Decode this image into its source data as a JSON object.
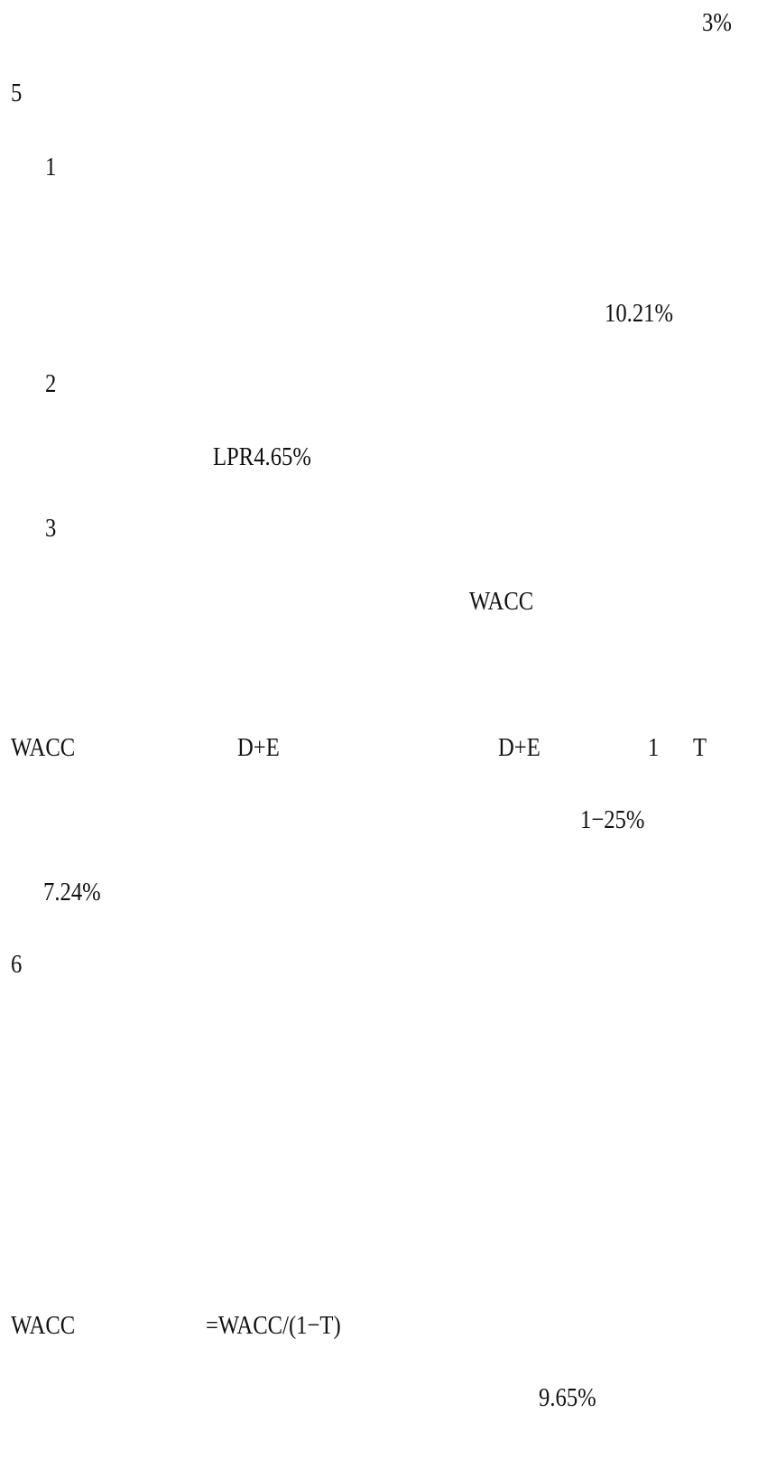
{
  "fragments": [
    "3%",
    "5",
    "1",
    "10.21%",
    "2",
    "LPR4.65%",
    "3",
    "WACC",
    "WACC",
    "D+E",
    "D+E",
    "1",
    "T",
    "1−25%",
    "7.24%",
    "6",
    "WACC",
    "=WACC/(1−T)",
    "9.65%"
  ]
}
